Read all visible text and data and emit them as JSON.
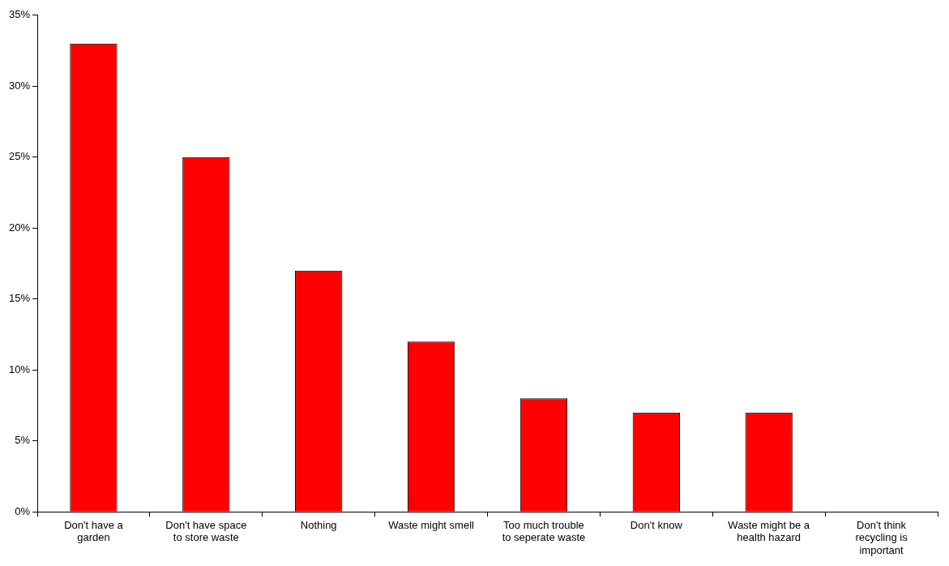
{
  "chart_data": {
    "type": "bar",
    "categories": [
      "Don't have a garden",
      "Don't have space to store waste",
      "Nothing",
      "Waste might smell",
      "Too much trouble to seperate waste",
      "Don't know",
      "Waste might be a health hazard",
      "Don't think recycling is important"
    ],
    "values": [
      33,
      25,
      17,
      12,
      8,
      7,
      7,
      0
    ],
    "color": "#ff0000",
    "ylim": [
      0,
      35
    ],
    "yticks": [
      {
        "value": 0,
        "label": "0%"
      },
      {
        "value": 5,
        "label": "5%"
      },
      {
        "value": 10,
        "label": "10%"
      },
      {
        "value": 15,
        "label": "15%"
      },
      {
        "value": 20,
        "label": "20%"
      },
      {
        "value": 25,
        "label": "25%"
      },
      {
        "value": 30,
        "label": "30%"
      },
      {
        "value": 35,
        "label": "35%"
      }
    ],
    "grid": false,
    "legend": false
  }
}
